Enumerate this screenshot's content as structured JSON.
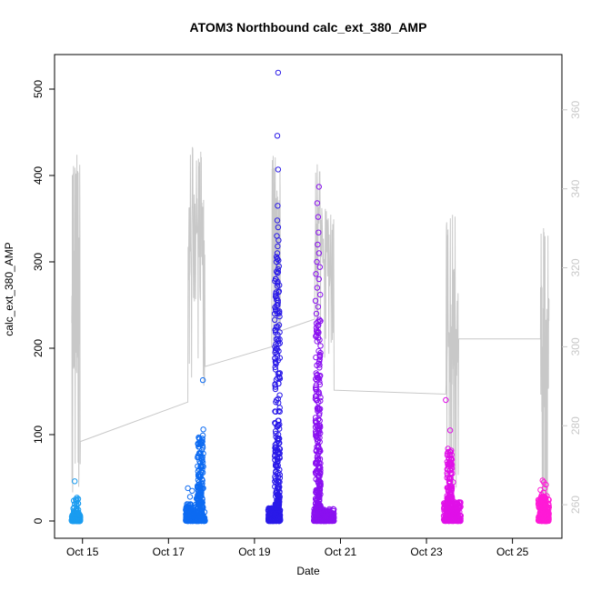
{
  "chart_data": {
    "type": "scatter",
    "title": "ATOM3 Northbound calc_ext_380_AMP",
    "xlabel": "Date",
    "ylabel": "calc_ext_380_AMP",
    "x_ticks": [
      "Oct 15",
      "Oct 17",
      "Oct 19",
      "Oct 21",
      "Oct 23",
      "Oct 25"
    ],
    "x_tick_values": [
      15,
      17,
      19,
      21,
      23,
      25
    ],
    "xlim": [
      14.35,
      26.15
    ],
    "ylim": [
      -20,
      540
    ],
    "y_ticks": [
      0,
      100,
      200,
      300,
      400,
      500
    ],
    "y2_ticks": [
      260,
      280,
      300,
      320,
      340,
      360
    ],
    "y2lim": [
      251.5,
      374
    ],
    "colors": {
      "axes": "#000000",
      "right_axis": "#c8c8c8",
      "secondary_line": "#c8c8c8"
    },
    "point_clusters": [
      {
        "color": "#1a9cf0",
        "x_range": [
          14.75,
          14.95
        ],
        "base_max": 8,
        "outliers": [
          [
            14.82,
            46
          ],
          [
            14.84,
            25
          ],
          [
            14.87,
            12
          ],
          [
            14.8,
            10
          ],
          [
            14.9,
            7
          ]
        ]
      },
      {
        "color": "#0d6bf2",
        "x_range": [
          17.4,
          17.85
        ],
        "base_max": 20,
        "outliers": [
          [
            17.8,
            163
          ],
          [
            17.81,
            106
          ],
          [
            17.8,
            99
          ],
          [
            17.79,
            92
          ],
          [
            17.8,
            85
          ],
          [
            17.81,
            78
          ],
          [
            17.79,
            74
          ],
          [
            17.8,
            68
          ],
          [
            17.81,
            63
          ],
          [
            17.8,
            56
          ],
          [
            17.79,
            47
          ],
          [
            17.81,
            38
          ],
          [
            17.45,
            38
          ],
          [
            17.55,
            35
          ],
          [
            17.7,
            32
          ],
          [
            17.5,
            28
          ],
          [
            17.65,
            26
          ]
        ]
      },
      {
        "color": "#2a1ae8",
        "x_range": [
          19.32,
          19.6
        ],
        "base_max": 15,
        "outliers": [
          [
            19.55,
            519
          ],
          [
            19.53,
            446
          ],
          [
            19.55,
            407
          ],
          [
            19.54,
            365
          ],
          [
            19.53,
            348
          ],
          [
            19.55,
            340
          ],
          [
            19.52,
            330
          ],
          [
            19.56,
            325
          ],
          [
            19.54,
            318
          ],
          [
            19.53,
            310
          ],
          [
            19.51,
            300
          ],
          [
            19.57,
            295
          ],
          [
            19.55,
            288
          ],
          [
            19.5,
            280
          ],
          [
            19.53,
            272
          ],
          [
            19.56,
            265
          ],
          [
            19.52,
            258
          ],
          [
            19.54,
            250
          ],
          [
            19.49,
            245
          ],
          [
            19.47,
            240
          ]
        ]
      },
      {
        "color": "#8a10f0",
        "x_range": [
          20.38,
          20.85
        ],
        "base_max": 15,
        "outliers": [
          [
            20.5,
            387
          ],
          [
            20.46,
            368
          ],
          [
            20.48,
            352
          ],
          [
            20.49,
            334
          ],
          [
            20.47,
            320
          ],
          [
            20.5,
            310
          ],
          [
            20.45,
            300
          ],
          [
            20.52,
            294
          ],
          [
            20.43,
            286
          ],
          [
            20.5,
            280
          ],
          [
            20.46,
            270
          ],
          [
            20.53,
            262
          ],
          [
            20.42,
            255
          ],
          [
            20.48,
            248
          ],
          [
            20.44,
            240
          ],
          [
            20.51,
            233
          ],
          [
            20.47,
            226
          ],
          [
            20.49,
            218
          ]
        ]
      },
      {
        "color": "#e010e8",
        "x_range": [
          23.4,
          23.8
        ],
        "base_max": 22,
        "outliers": [
          [
            23.45,
            140
          ],
          [
            23.55,
            105
          ],
          [
            23.52,
            72
          ],
          [
            23.57,
            68
          ],
          [
            23.5,
            60
          ],
          [
            23.6,
            55
          ],
          [
            23.48,
            50
          ],
          [
            23.62,
            45
          ],
          [
            23.55,
            40
          ]
        ]
      },
      {
        "color": "#ff1ad6",
        "x_range": [
          25.6,
          25.85
        ],
        "base_max": 25,
        "outliers": [
          [
            25.7,
            47
          ],
          [
            25.73,
            45
          ],
          [
            25.78,
            42
          ],
          [
            25.75,
            38
          ],
          [
            25.65,
            36
          ],
          [
            25.72,
            33
          ],
          [
            25.68,
            30
          ],
          [
            25.8,
            29
          ],
          [
            25.62,
            22
          ]
        ]
      }
    ],
    "secondary_line": {
      "axis": "right",
      "segments": [
        {
          "x_range": [
            14.75,
            14.95
          ],
          "min": 263,
          "max": 349,
          "end": 276
        },
        {
          "x_range": [
            17.45,
            17.85
          ],
          "min": 290,
          "max": 351,
          "start": 286,
          "end": 295
        },
        {
          "x_range": [
            19.4,
            19.6
          ],
          "min": 298,
          "max": 350,
          "start": 300,
          "end": 304
        },
        {
          "x_range": [
            20.4,
            20.85
          ],
          "min": 297,
          "max": 347,
          "start": 307,
          "end": 289
        },
        {
          "x_range": [
            23.45,
            23.75
          ],
          "min": 263,
          "max": 334,
          "start": 288,
          "end": 302
        },
        {
          "x_range": [
            25.65,
            25.85
          ],
          "min": 255,
          "max": 333,
          "start": 302,
          "end": 312
        }
      ]
    }
  }
}
